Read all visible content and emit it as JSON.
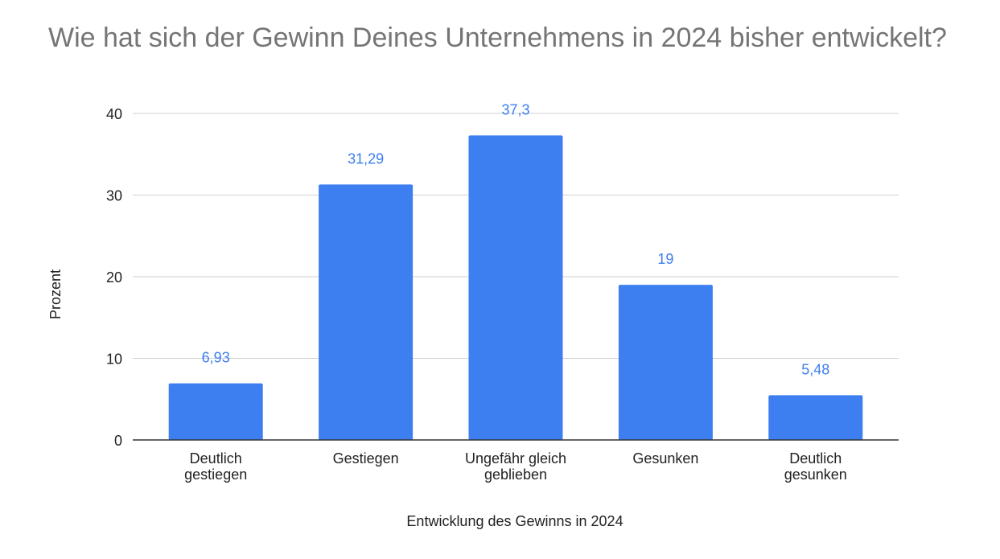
{
  "chart_data": {
    "type": "bar",
    "title": "Wie hat sich der Gewinn Deines Unternehmens in 2024 bisher entwickelt?",
    "xlabel": "Entwicklung des Gewinns in 2024",
    "ylabel": "Prozent",
    "categories": [
      [
        "Deutlich",
        "gestiegen"
      ],
      [
        "Gestiegen"
      ],
      [
        "Ungefähr gleich",
        "geblieben"
      ],
      [
        "Gesunken"
      ],
      [
        "Deutlich",
        "gesunken"
      ]
    ],
    "values": [
      6.93,
      31.29,
      37.3,
      19,
      5.48
    ],
    "data_labels": [
      "6,93",
      "31,29",
      "37,3",
      "19",
      "5,48"
    ],
    "ylim": [
      0,
      40
    ],
    "yticks": [
      0,
      10,
      20,
      30,
      40
    ],
    "grid": true,
    "legend": "none",
    "colors": {
      "bar": "#3d7ef0",
      "data_label": "#3d7ef0",
      "grid": "#cfcfcf",
      "axis": "#333333",
      "text": "#222222",
      "title": "#757575"
    }
  }
}
